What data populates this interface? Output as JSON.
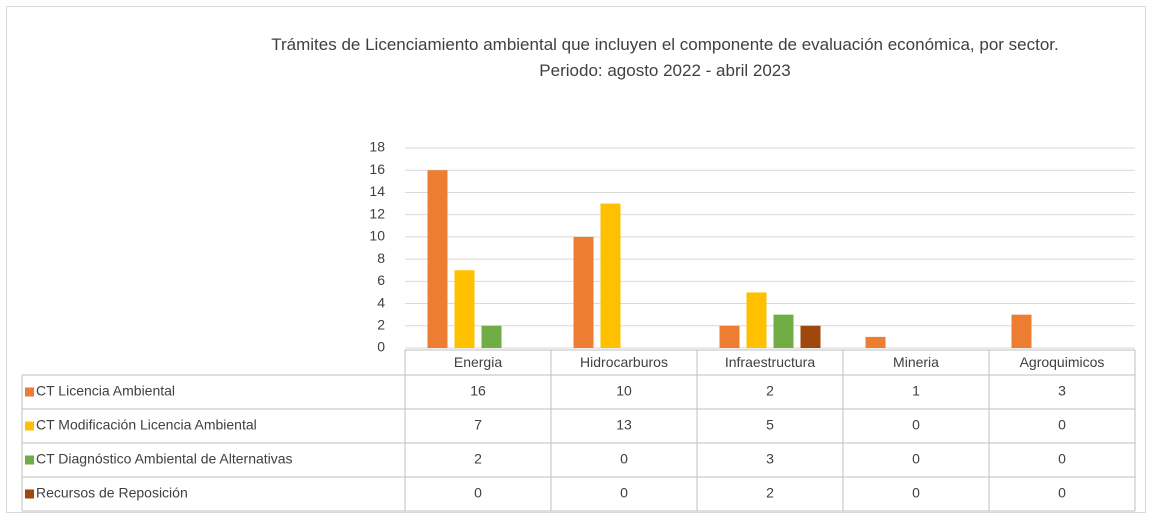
{
  "chart_data": {
    "type": "bar",
    "title": "Trámites de Licenciamiento ambiental que incluyen el componente de evaluación económica, por sector.",
    "subtitle": "Periodo: agosto 2022 - abril 2023",
    "categories": [
      "Energia",
      "Hidrocarburos",
      "Infraestructura",
      "Mineria",
      "Agroquimicos"
    ],
    "series": [
      {
        "name": "CT Licencia Ambiental",
        "color": "#ed7d31",
        "values": [
          16,
          10,
          2,
          1,
          3
        ]
      },
      {
        "name": "CT Modificación Licencia Ambiental",
        "color": "#ffc000",
        "values": [
          7,
          13,
          5,
          0,
          0
        ]
      },
      {
        "name": "CT Diagnóstico Ambiental de Alternativas",
        "color": "#70ad47",
        "values": [
          2,
          0,
          3,
          0,
          0
        ]
      },
      {
        "name": "Recursos de Reposición",
        "color": "#9e480e",
        "values": [
          0,
          0,
          2,
          0,
          0
        ]
      }
    ],
    "ylim": [
      0,
      18
    ],
    "yticks": [
      0,
      2,
      4,
      6,
      8,
      10,
      12,
      14,
      16,
      18
    ],
    "grid": true,
    "data_table": true
  }
}
